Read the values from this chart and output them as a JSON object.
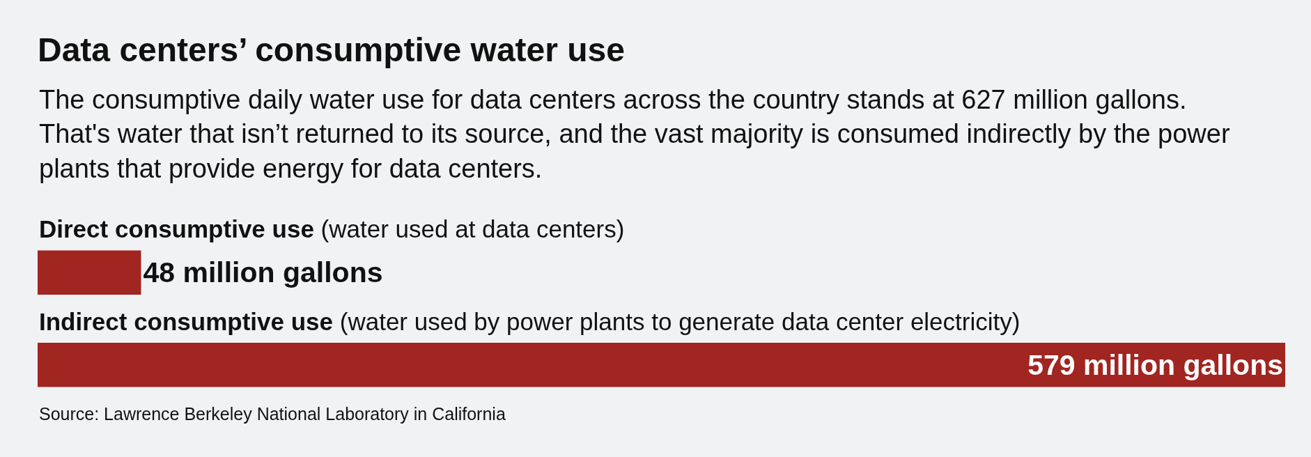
{
  "chart_data": {
    "type": "bar",
    "orientation": "horizontal",
    "title": "Data centers’ consumptive water use",
    "subtitle": "The consumptive daily water use for data centers across the country stands at 627 million gallons.\nThat's water that isn’t returned to its source, and the vast majority is consumed indirectly by the power\nplants that provide energy for data centers.",
    "categories": [
      "Direct consumptive use (water used at data centers)",
      "Indirect consumptive use (water used by power plants to generate data center electricity)"
    ],
    "values": [
      48,
      579
    ],
    "value_labels": [
      "48 million gallons",
      "579 million gallons"
    ],
    "color": "#a12520",
    "annotations": [
      "Source: Lawrence Berkeley National Laboratory in California"
    ]
  }
}
